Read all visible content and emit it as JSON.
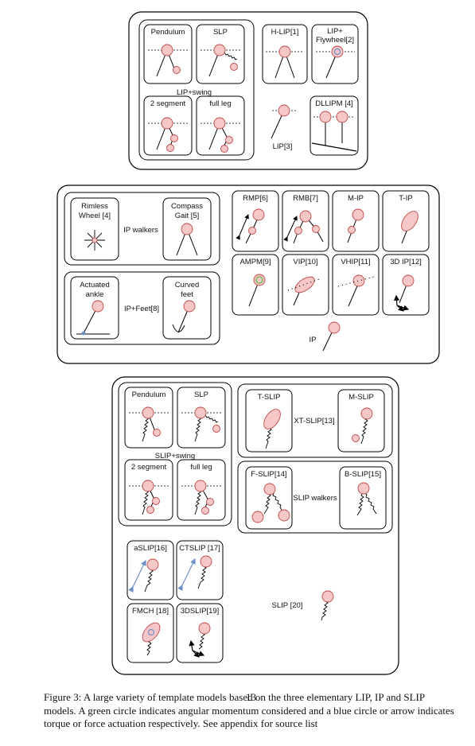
{
  "lip_group": {
    "pendulum": "Pendulum",
    "slp": "SLP",
    "lip_swing": "LIP+swing",
    "two_segment": "2 segment",
    "full_leg": "full leg",
    "hlip": "H-LIP[1]",
    "lip_flywheel_1": "LIP+",
    "lip_flywheel_2": "Flywheel[2]",
    "lip": "LIP[3]",
    "dllipm": "DLLIPM [4]"
  },
  "ip_group": {
    "rimless_1": "Rimless",
    "rimless_2": "Wheel [4]",
    "compass_1": "Compass",
    "compass_2": "Gait [5]",
    "ip_walkers": "IP walkers",
    "actuated_1": "Actuated",
    "actuated_2": "ankle",
    "curved_1": "Curved",
    "curved_2": "feet",
    "ip_feet": "IP+Feet[8]",
    "rmp": "RMP[6]",
    "rmb": "RMB[7]",
    "mip": "M-IP",
    "tip": "T-IP",
    "ampm": "AMPM[9]",
    "vip": "VIP[10]",
    "vhip": "VHIP[11]",
    "ip3d": "3D IP[12]",
    "ip": "IP"
  },
  "slip_group": {
    "pendulum": "Pendulum",
    "slp": "SLP",
    "slip_swing": "SLIP+swing",
    "two_segment": "2 segment",
    "full_leg": "full leg",
    "tslip": "T-SLIP",
    "xtslip": "XT-SLIP[13]",
    "mslip": "M-SLIP",
    "fslip": "F-SLIP[14]",
    "slip_walkers": "SLIP walkers",
    "bslip": "B-SLIP[15]",
    "aslip": "aSLIP[16]",
    "ctslip": "CTSLIP [17]",
    "fmch": "FMCH [18]",
    "slip3d": "3DSLIP[19]",
    "slip": "SLIP [20]"
  },
  "caption": "Figure 3: A large variety of template models based on the three elementary LIP, IP and SLIP models. A green circle indicates angular momentum considered and a blue circle or arrow indicates torque or force actuation respectively. See appendix for source list",
  "page_number": "13",
  "colors": {
    "mass_fill": "#f6c7c7",
    "mass_stroke": "#c04848",
    "momentum": "#7fbf5f",
    "actuation": "#6f8fc8"
  }
}
